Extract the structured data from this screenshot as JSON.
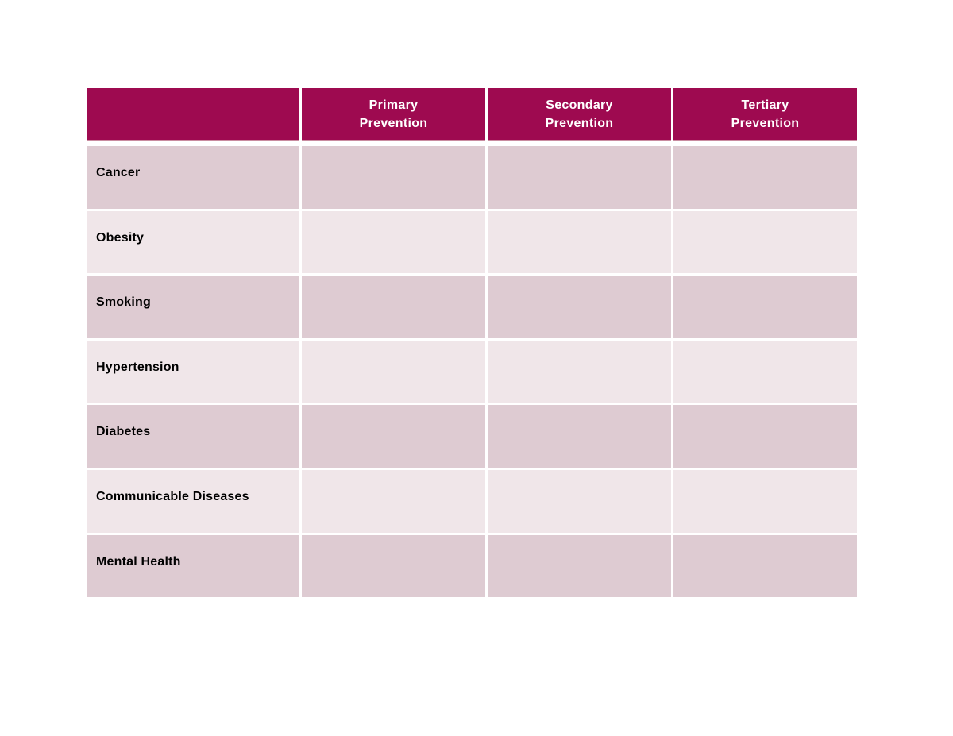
{
  "table": {
    "colors": {
      "header_bg": "#9E0A50",
      "header_text": "#FFFFFF",
      "header_underline": "#C98CA0",
      "row_dark": "#DECBD2",
      "row_light": "#F0E6E9",
      "label_text": "#000000",
      "page_bg": "#FFFFFF"
    },
    "header": {
      "cells": [
        "",
        "Primary\nPrevention",
        "Secondary\nPrevention",
        "Tertiary\nPrevention"
      ]
    },
    "rows": [
      {
        "label": "Cancer",
        "cells": [
          "",
          "",
          ""
        ]
      },
      {
        "label": "Obesity",
        "cells": [
          "",
          "",
          ""
        ]
      },
      {
        "label": "Smoking",
        "cells": [
          "",
          "",
          ""
        ]
      },
      {
        "label": "Hypertension",
        "cells": [
          "",
          "",
          ""
        ]
      },
      {
        "label": "Diabetes",
        "cells": [
          "",
          "",
          ""
        ]
      },
      {
        "label": "Communicable Diseases",
        "cells": [
          "",
          "",
          ""
        ]
      },
      {
        "label": "Mental Health",
        "cells": [
          "",
          "",
          ""
        ]
      }
    ]
  }
}
